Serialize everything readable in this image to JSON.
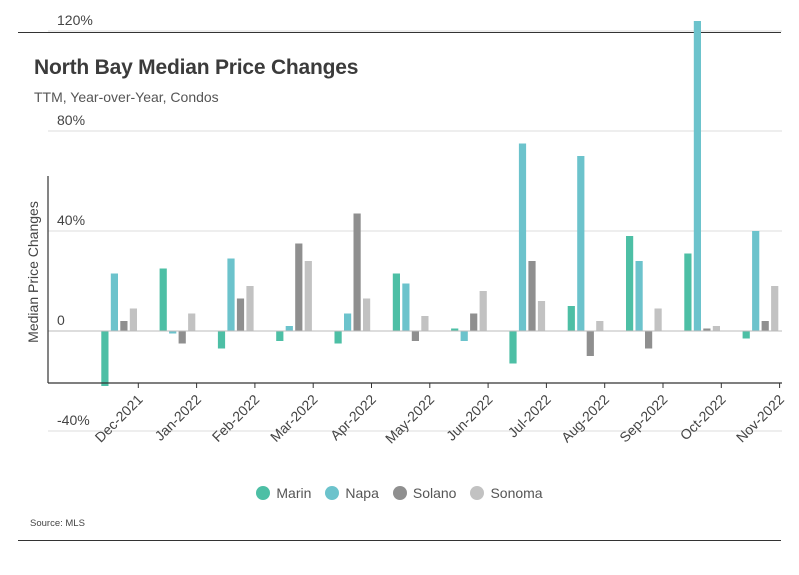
{
  "header": {
    "title": "North Bay Median Price Changes",
    "subtitle": "TTM, Year-over-Year, Condos"
  },
  "footer": {
    "source": "Source:  MLS"
  },
  "chart_data": {
    "type": "bar",
    "title": "North Bay Median Price Changes",
    "subtitle": "TTM, Year-over-Year, Condos",
    "ylabel": "Median Price Changes",
    "xlabel": "",
    "ylim": [
      -45,
      130
    ],
    "yticks": [
      -40,
      0,
      40,
      80,
      120
    ],
    "ytick_labels": [
      "-40%",
      "0",
      "40%",
      "80%",
      "120%"
    ],
    "grid": true,
    "legend_position": "bottom",
    "categories": [
      "Dec-2021",
      "Jan-2022",
      "Feb-2022",
      "Mar-2022",
      "Apr-2022",
      "May-2022",
      "Jun-2022",
      "Jul-2022",
      "Aug-2022",
      "Sep-2022",
      "Oct-2022",
      "Nov-2022"
    ],
    "series": [
      {
        "name": "Marin",
        "color": "#4dbfa5",
        "values": [
          -22,
          25,
          -7,
          -4,
          -5,
          23,
          1,
          -13,
          10,
          38,
          31,
          -3
        ]
      },
      {
        "name": "Napa",
        "color": "#6cc3cc",
        "values": [
          23,
          -1,
          29,
          2,
          7,
          19,
          -4,
          75,
          70,
          28,
          124,
          40
        ]
      },
      {
        "name": "Solano",
        "color": "#8f8f8f",
        "values": [
          4,
          -5,
          13,
          35,
          47,
          -4,
          7,
          28,
          -10,
          -7,
          1,
          4
        ]
      },
      {
        "name": "Sonoma",
        "color": "#c2c2c2",
        "values": [
          9,
          7,
          18,
          28,
          13,
          6,
          16,
          12,
          4,
          9,
          2,
          18
        ]
      }
    ]
  }
}
